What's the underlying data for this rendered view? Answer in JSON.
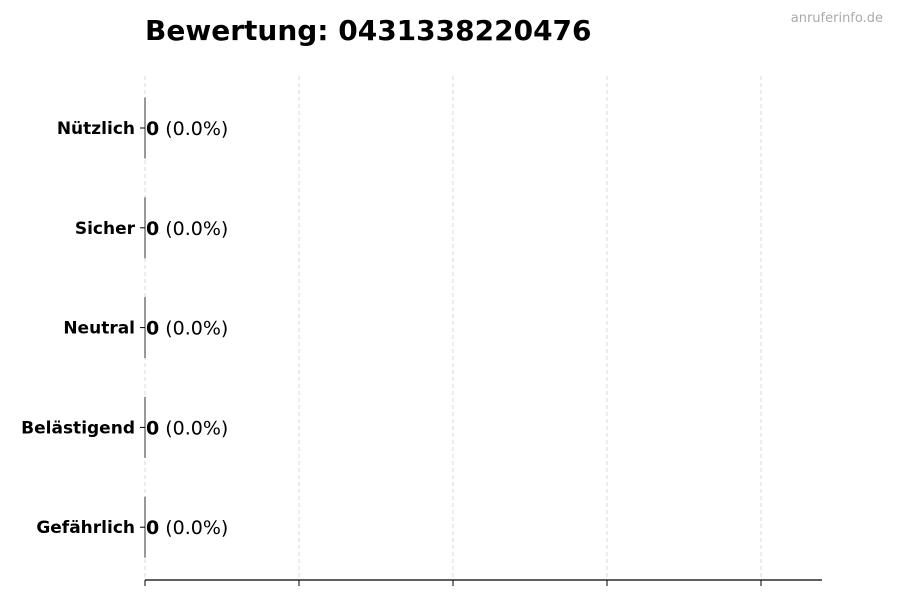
{
  "watermark": "anruferinfo.de",
  "chart_data": {
    "type": "bar",
    "orientation": "horizontal",
    "title": "Bewertung: 0431338220476",
    "categories": [
      "Nützlich",
      "Sicher",
      "Neutral",
      "Belästigend",
      "Gefährlich"
    ],
    "values": [
      0,
      0,
      0,
      0,
      0
    ],
    "data_labels": [
      {
        "count": "0",
        "percent": "(0.0%)"
      },
      {
        "count": "0",
        "percent": "(0.0%)"
      },
      {
        "count": "0",
        "percent": "(0.0%)"
      },
      {
        "count": "0",
        "percent": "(0.0%)"
      },
      {
        "count": "0",
        "percent": "(0.0%)"
      }
    ],
    "xlabel": "",
    "ylabel": "",
    "x_tick_labels_shown": false,
    "grid": "vertical dashed",
    "colors": {
      "grid": "#d9d9d9",
      "axis": "#000000",
      "bar_edge": "#333333"
    }
  }
}
